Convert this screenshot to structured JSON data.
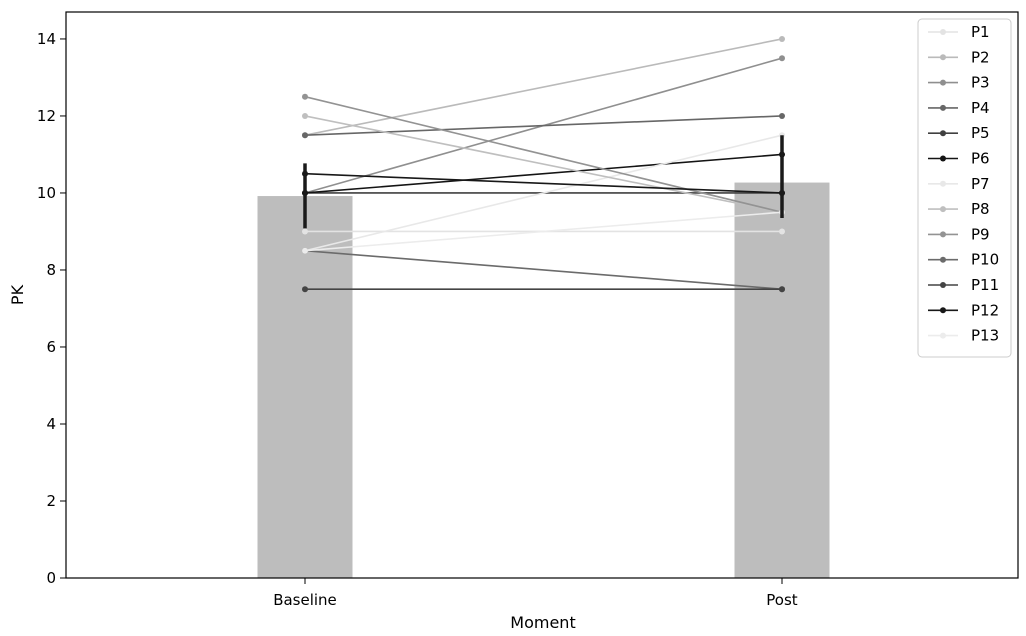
{
  "chart_data": {
    "type": "bar",
    "categories": [
      "Baseline",
      "Post"
    ],
    "xlabel": "Moment",
    "ylabel": "PK",
    "ylim": [
      0,
      14.7
    ],
    "yticks": [
      0,
      2,
      4,
      6,
      8,
      10,
      12,
      14
    ],
    "grid": false,
    "legend_position": "top-right",
    "bars": {
      "values": [
        9.92,
        10.27
      ],
      "errors": [
        [
          9.08,
          10.77
        ],
        [
          9.35,
          11.5
        ]
      ],
      "color": "#bdbdbd",
      "error_color": "#1a1a1a"
    },
    "series": [
      {
        "name": "P1",
        "values": [
          9.0,
          9.0
        ],
        "color": "#e3e3e3"
      },
      {
        "name": "P2",
        "values": [
          11.5,
          14.0
        ],
        "color": "#bababa"
      },
      {
        "name": "P3",
        "values": [
          10.0,
          13.5
        ],
        "color": "#8f8f8f"
      },
      {
        "name": "P4",
        "values": [
          11.5,
          12.0
        ],
        "color": "#676767"
      },
      {
        "name": "P5",
        "values": [
          10.0,
          10.0
        ],
        "color": "#404040"
      },
      {
        "name": "P6",
        "values": [
          10.0,
          11.0
        ],
        "color": "#141414"
      },
      {
        "name": "P7",
        "values": [
          8.5,
          11.5
        ],
        "color": "#e8e8e8"
      },
      {
        "name": "P8",
        "values": [
          12.0,
          9.5
        ],
        "color": "#bfbfbf"
      },
      {
        "name": "P9",
        "values": [
          12.5,
          9.5
        ],
        "color": "#939393"
      },
      {
        "name": "P10",
        "values": [
          8.5,
          7.5
        ],
        "color": "#6b6b6b"
      },
      {
        "name": "P11",
        "values": [
          7.5,
          7.5
        ],
        "color": "#444444"
      },
      {
        "name": "P12",
        "values": [
          10.5,
          10.0
        ],
        "color": "#181818"
      },
      {
        "name": "P13",
        "values": [
          8.5,
          9.5
        ],
        "color": "#ececec"
      }
    ]
  }
}
